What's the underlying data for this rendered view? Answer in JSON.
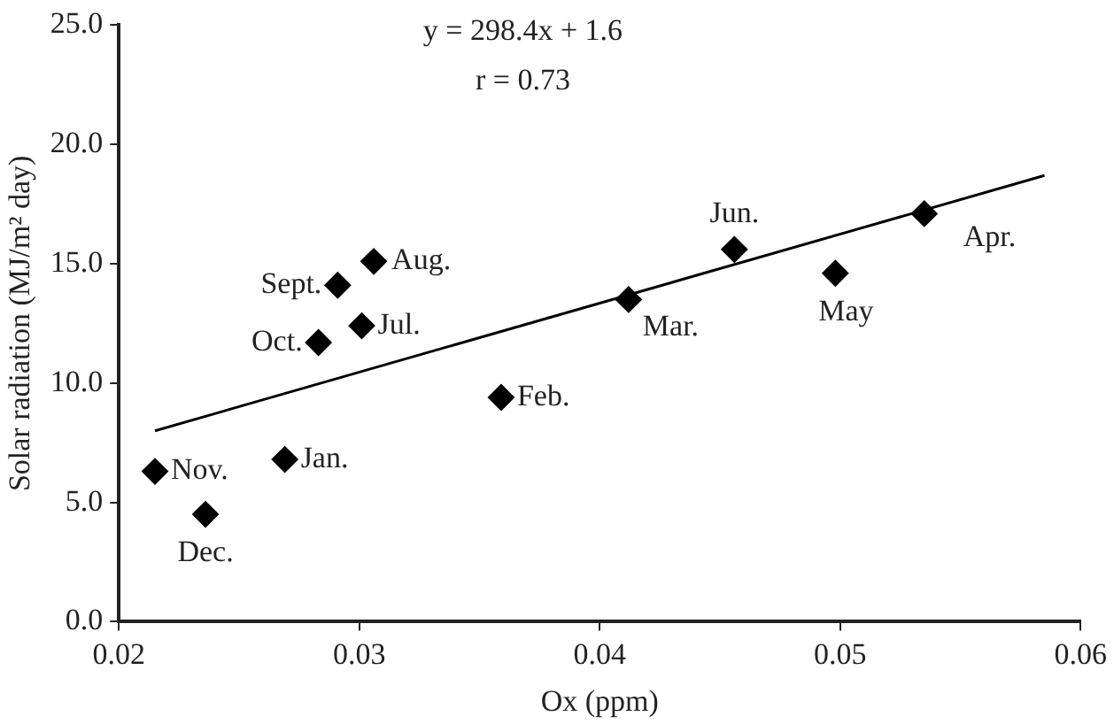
{
  "chart_data": {
    "type": "scatter",
    "xlabel": "Ox (ppm)",
    "ylabel": "Solar radiation (MJ/m² day)",
    "xlim": [
      0.02,
      0.06
    ],
    "xticks": [
      0.02,
      0.03,
      0.04,
      0.05,
      0.06
    ],
    "ylim": [
      0,
      25
    ],
    "yticks": [
      {
        "value": 0,
        "label": "0.0"
      },
      {
        "value": 5,
        "label": "5.0"
      },
      {
        "value": 10,
        "label": "10.0"
      },
      {
        "value": 15,
        "label": "15.0"
      },
      {
        "value": 20,
        "label": "20.0"
      },
      {
        "value": 25,
        "label": "25.0"
      }
    ],
    "grid": false,
    "legend": false,
    "marker": "diamond",
    "series": [
      {
        "color": "#000000",
        "x": [
          0.0269,
          0.0359,
          0.0412,
          0.0535,
          0.0498,
          0.0456,
          0.0301,
          0.0306,
          0.0291,
          0.0283,
          0.0215,
          0.0236
        ],
        "values": [
          6.8,
          9.4,
          13.5,
          17.1,
          14.6,
          15.6,
          12.4,
          15.1,
          14.1,
          11.7,
          6.3,
          4.5
        ]
      },
      {
        "type": "line",
        "color": "#000000",
        "marker": "none",
        "x": [
          0.0215,
          0.0585
        ],
        "values": [
          8.0,
          18.7
        ]
      }
    ],
    "annotations": [
      "y = 298.4x + 1.6",
      "r = 0.73",
      {
        "text": "Jan.",
        "x": 0.0269,
        "y": 6.8
      },
      {
        "text": "Feb.",
        "x": 0.0359,
        "y": 9.4
      },
      {
        "text": "Mar.",
        "x": 0.0412,
        "y": 13.5
      },
      {
        "text": "Apr.",
        "x": 0.0535,
        "y": 17.1
      },
      {
        "text": "May",
        "x": 0.0498,
        "y": 14.6
      },
      {
        "text": "Jun.",
        "x": 0.0456,
        "y": 15.6
      },
      {
        "text": "Jul.",
        "x": 0.0301,
        "y": 12.4
      },
      {
        "text": "Aug.",
        "x": 0.0306,
        "y": 15.1
      },
      {
        "text": "Sept.",
        "x": 0.0291,
        "y": 14.1
      },
      {
        "text": "Oct.",
        "x": 0.0283,
        "y": 11.7
      },
      {
        "text": "Nov.",
        "x": 0.0215,
        "y": 6.3
      },
      {
        "text": "Dec.",
        "x": 0.0236,
        "y": 4.5
      }
    ]
  }
}
